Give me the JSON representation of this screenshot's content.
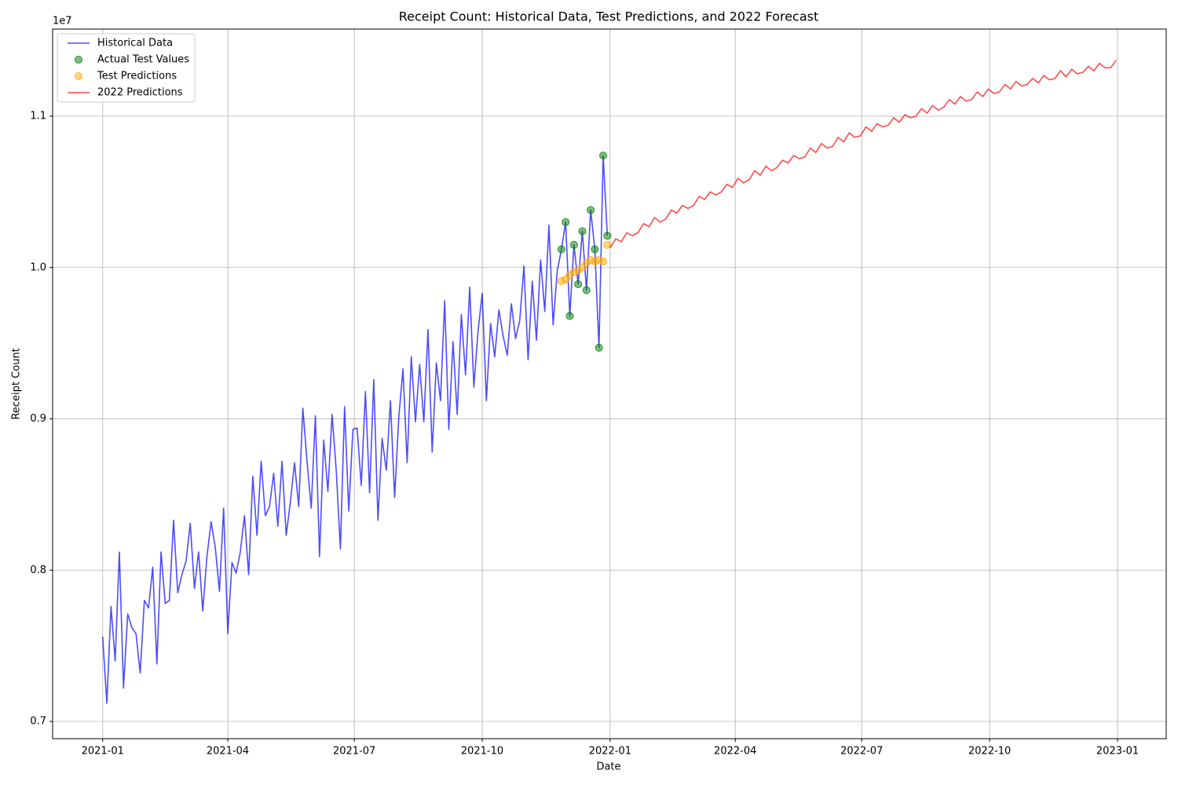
{
  "chart_data": {
    "type": "line",
    "title": "Receipt Count: Historical Data, Test Predictions, and 2022 Forecast",
    "x_label": "Date",
    "y_label": "Receipt Count",
    "y_offset_label": "1e7",
    "xlim": [
      "2020-11-26",
      "2023-02-05"
    ],
    "xticks": [
      "2021-01",
      "2021-04",
      "2021-07",
      "2021-10",
      "2022-01",
      "2022-04",
      "2022-07",
      "2022-10",
      "2023-01"
    ],
    "ylim": [
      0.6886,
      1.1576
    ],
    "yticks": [
      0.7,
      0.8,
      0.9,
      {
        "value": 1,
        "label": "1.0"
      },
      1.1
    ],
    "grid": true,
    "legend": "upper left",
    "series": [
      {
        "name": "Historical Data",
        "type": "line",
        "color": "#0000ff",
        "alpha": 0.7,
        "x": [
          "2021-01-01",
          "2021-01-04",
          "2021-01-07",
          "2021-01-10",
          "2021-01-13",
          "2021-01-16",
          "2021-01-19",
          "2021-01-22",
          "2021-01-25",
          "2021-01-28",
          "2021-01-31",
          "2021-02-03",
          "2021-02-06",
          "2021-02-09",
          "2021-02-12",
          "2021-02-15",
          "2021-02-18",
          "2021-02-21",
          "2021-02-24",
          "2021-02-27",
          "2021-03-02",
          "2021-03-05",
          "2021-03-08",
          "2021-03-11",
          "2021-03-14",
          "2021-03-17",
          "2021-03-20",
          "2021-03-23",
          "2021-03-26",
          "2021-03-29",
          "2021-04-01",
          "2021-04-04",
          "2021-04-07",
          "2021-04-10",
          "2021-04-13",
          "2021-04-16",
          "2021-04-19",
          "2021-04-22",
          "2021-04-25",
          "2021-04-28",
          "2021-05-01",
          "2021-05-04",
          "2021-05-07",
          "2021-05-10",
          "2021-05-13",
          "2021-05-16",
          "2021-05-19",
          "2021-05-22",
          "2021-05-25",
          "2021-05-28",
          "2021-05-31",
          "2021-06-03",
          "2021-06-06",
          "2021-06-09",
          "2021-06-12",
          "2021-06-15",
          "2021-06-18",
          "2021-06-21",
          "2021-06-24",
          "2021-06-27",
          "2021-06-30",
          "2021-07-03",
          "2021-07-06",
          "2021-07-09",
          "2021-07-12",
          "2021-07-15",
          "2021-07-18",
          "2021-07-21",
          "2021-07-24",
          "2021-07-27",
          "2021-07-30",
          "2021-08-02",
          "2021-08-05",
          "2021-08-08",
          "2021-08-11",
          "2021-08-14",
          "2021-08-17",
          "2021-08-20",
          "2021-08-23",
          "2021-08-26",
          "2021-08-29",
          "2021-09-01",
          "2021-09-04",
          "2021-09-07",
          "2021-09-10",
          "2021-09-13",
          "2021-09-16",
          "2021-09-19",
          "2021-09-22",
          "2021-09-25",
          "2021-09-28",
          "2021-10-01",
          "2021-10-04",
          "2021-10-07",
          "2021-10-10",
          "2021-10-13",
          "2021-10-16",
          "2021-10-19",
          "2021-10-22",
          "2021-10-25",
          "2021-10-28",
          "2021-10-31",
          "2021-11-03",
          "2021-11-06",
          "2021-11-09",
          "2021-11-12",
          "2021-11-15",
          "2021-11-18",
          "2021-11-21",
          "2021-11-24",
          "2021-11-27",
          "2021-11-30",
          "2021-12-03",
          "2021-12-06",
          "2021-12-09",
          "2021-12-12",
          "2021-12-15",
          "2021-12-18",
          "2021-12-21",
          "2021-12-24",
          "2021-12-27",
          "2021-12-30"
        ],
        "values": [
          0.756,
          0.712,
          0.776,
          0.74,
          0.812,
          0.722,
          0.771,
          0.762,
          0.758,
          0.732,
          0.78,
          0.775,
          0.802,
          0.738,
          0.812,
          0.778,
          0.78,
          0.833,
          0.785,
          0.797,
          0.806,
          0.831,
          0.788,
          0.812,
          0.773,
          0.809,
          0.832,
          0.815,
          0.786,
          0.841,
          0.758,
          0.805,
          0.798,
          0.812,
          0.836,
          0.797,
          0.862,
          0.823,
          0.872,
          0.836,
          0.842,
          0.864,
          0.829,
          0.872,
          0.823,
          0.845,
          0.871,
          0.842,
          0.907,
          0.872,
          0.841,
          0.902,
          0.809,
          0.886,
          0.852,
          0.903,
          0.866,
          0.814,
          0.908,
          0.839,
          0.893,
          0.894,
          0.856,
          0.918,
          0.851,
          0.926,
          0.833,
          0.887,
          0.866,
          0.912,
          0.848,
          0.901,
          0.933,
          0.871,
          0.941,
          0.898,
          0.936,
          0.898,
          0.959,
          0.878,
          0.937,
          0.912,
          0.978,
          0.893,
          0.951,
          0.903,
          0.969,
          0.929,
          0.987,
          0.921,
          0.958,
          0.983,
          0.912,
          0.963,
          0.941,
          0.972,
          0.955,
          0.942,
          0.976,
          0.953,
          0.965,
          1.001,
          0.939,
          0.991,
          0.952,
          1.005,
          0.971,
          1.028,
          0.962,
          0.998,
          1.012,
          1.03,
          0.968,
          1.015,
          0.989,
          1.024,
          0.985,
          1.038,
          1.012,
          0.947,
          1.074,
          1.021
        ]
      },
      {
        "name": "Actual Test Values",
        "type": "scatter",
        "color": "#008000",
        "alpha": 0.5,
        "x": [
          "2021-11-27",
          "2021-11-30",
          "2021-12-03",
          "2021-12-06",
          "2021-12-09",
          "2021-12-12",
          "2021-12-15",
          "2021-12-18",
          "2021-12-21",
          "2021-12-24",
          "2021-12-27",
          "2021-12-30"
        ],
        "values": [
          1.012,
          1.03,
          0.968,
          1.015,
          0.989,
          1.024,
          0.985,
          1.038,
          1.012,
          0.947,
          1.074,
          1.021
        ]
      },
      {
        "name": "Test Predictions",
        "type": "scatter",
        "color": "#ffa500",
        "alpha": 0.5,
        "x": [
          "2021-11-27",
          "2021-11-30",
          "2021-12-03",
          "2021-12-06",
          "2021-12-09",
          "2021-12-12",
          "2021-12-15",
          "2021-12-18",
          "2021-12-21",
          "2021-12-24",
          "2021-12-27",
          "2021-12-30"
        ],
        "values": [
          0.991,
          0.992,
          0.995,
          0.997,
          0.998,
          1.0,
          1.003,
          1.005,
          1.004,
          1.005,
          1.004,
          1.015
        ]
      },
      {
        "name": "2022 Predictions",
        "type": "line",
        "color": "#ff0000",
        "alpha": 0.7,
        "x": [
          "2022-01-01",
          "2022-01-05",
          "2022-01-09",
          "2022-01-13",
          "2022-01-17",
          "2022-01-21",
          "2022-01-25",
          "2022-01-29",
          "2022-02-02",
          "2022-02-06",
          "2022-02-10",
          "2022-02-14",
          "2022-02-18",
          "2022-02-22",
          "2022-02-26",
          "2022-03-02",
          "2022-03-06",
          "2022-03-10",
          "2022-03-14",
          "2022-03-18",
          "2022-03-22",
          "2022-03-26",
          "2022-03-30",
          "2022-04-03",
          "2022-04-07",
          "2022-04-11",
          "2022-04-15",
          "2022-04-19",
          "2022-04-23",
          "2022-04-27",
          "2022-05-01",
          "2022-05-05",
          "2022-05-09",
          "2022-05-13",
          "2022-05-17",
          "2022-05-21",
          "2022-05-25",
          "2022-05-29",
          "2022-06-02",
          "2022-06-06",
          "2022-06-10",
          "2022-06-14",
          "2022-06-18",
          "2022-06-22",
          "2022-06-26",
          "2022-06-30",
          "2022-07-04",
          "2022-07-08",
          "2022-07-12",
          "2022-07-16",
          "2022-07-20",
          "2022-07-24",
          "2022-07-28",
          "2022-08-01",
          "2022-08-05",
          "2022-08-09",
          "2022-08-13",
          "2022-08-17",
          "2022-08-21",
          "2022-08-25",
          "2022-08-29",
          "2022-09-02",
          "2022-09-06",
          "2022-09-10",
          "2022-09-14",
          "2022-09-18",
          "2022-09-22",
          "2022-09-26",
          "2022-09-30",
          "2022-10-04",
          "2022-10-08",
          "2022-10-12",
          "2022-10-16",
          "2022-10-20",
          "2022-10-24",
          "2022-10-28",
          "2022-11-01",
          "2022-11-05",
          "2022-11-09",
          "2022-11-13",
          "2022-11-17",
          "2022-11-21",
          "2022-11-25",
          "2022-11-29",
          "2022-12-03",
          "2022-12-07",
          "2022-12-11",
          "2022-12-15",
          "2022-12-19",
          "2022-12-23",
          "2022-12-27",
          "2022-12-31"
        ],
        "values": [
          1.013,
          1.019,
          1.017,
          1.023,
          1.021,
          1.023,
          1.029,
          1.027,
          1.033,
          1.03,
          1.032,
          1.038,
          1.036,
          1.041,
          1.039,
          1.041,
          1.047,
          1.045,
          1.05,
          1.048,
          1.05,
          1.055,
          1.053,
          1.059,
          1.056,
          1.058,
          1.064,
          1.061,
          1.067,
          1.064,
          1.066,
          1.071,
          1.069,
          1.074,
          1.072,
          1.073,
          1.079,
          1.076,
          1.082,
          1.079,
          1.08,
          1.086,
          1.083,
          1.089,
          1.086,
          1.087,
          1.093,
          1.09,
          1.095,
          1.093,
          1.094,
          1.099,
          1.096,
          1.101,
          1.099,
          1.1,
          1.105,
          1.102,
          1.107,
          1.104,
          1.106,
          1.111,
          1.108,
          1.113,
          1.11,
          1.111,
          1.116,
          1.113,
          1.118,
          1.115,
          1.116,
          1.121,
          1.118,
          1.123,
          1.12,
          1.121,
          1.125,
          1.122,
          1.127,
          1.124,
          1.125,
          1.13,
          1.126,
          1.131,
          1.128,
          1.129,
          1.133,
          1.13,
          1.135,
          1.132,
          1.132,
          1.137
        ]
      }
    ]
  }
}
